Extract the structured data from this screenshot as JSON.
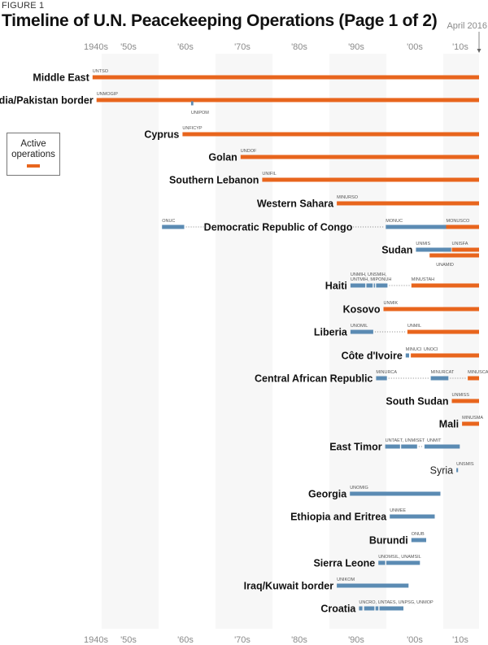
{
  "figure_label": "FIGURE 1",
  "title": "Timeline of U.N. Peacekeeping Operations (Page 1 of 2)",
  "legend": {
    "label": "Active operations",
    "color": "#e8651d"
  },
  "colors": {
    "active": "#e8651d",
    "inactive": "#5b8bb3",
    "band": "#f7f7f7"
  },
  "chart_data": {
    "type": "timeline",
    "title": "Timeline of U.N. Peacekeeping Operations (Page 1 of 2)",
    "x_range": [
      1940,
      2016
    ],
    "x_ticks": [
      "1940s",
      "'50s",
      "'60s",
      "'70s",
      "'80s",
      "'90s",
      "'00s",
      "'10s"
    ],
    "end_marker": "April 2016",
    "legend_position": "left",
    "rows": [
      {
        "name": "Middle East",
        "ops": [
          {
            "label": "UNTSO",
            "start": 1948.4,
            "end": 2016,
            "active": true
          }
        ]
      },
      {
        "name": "India/Pakistan border",
        "ops": [
          {
            "label": "UNMOGIP",
            "start": 1949.1,
            "end": 2016,
            "active": true
          },
          {
            "label": "UNIPOM",
            "start": 1965.7,
            "end": 1966.1,
            "active": false,
            "label_below": true,
            "sub": true
          }
        ]
      },
      {
        "name": "Cyprus",
        "ops": [
          {
            "label": "UNFICYP",
            "start": 1964.2,
            "end": 2016,
            "active": true
          }
        ]
      },
      {
        "name": "Golan",
        "ops": [
          {
            "label": "UNDOF",
            "start": 1974.4,
            "end": 2016,
            "active": true
          }
        ]
      },
      {
        "name": "Southern Lebanon",
        "ops": [
          {
            "label": "UNIFIL",
            "start": 1978.2,
            "end": 2016,
            "active": true
          }
        ]
      },
      {
        "name": "Western Sahara",
        "ops": [
          {
            "label": "MINURSO",
            "start": 1991.3,
            "end": 2016,
            "active": true
          }
        ]
      },
      {
        "name": "Democratic Republic of Congo",
        "label_inline": true,
        "ops": [
          {
            "label": "ONUC",
            "start": 1960.6,
            "end": 1964.5,
            "active": false
          },
          {
            "label": "MONUC",
            "start": 1999.9,
            "end": 2010.5,
            "active": false
          },
          {
            "label": "MONUSCO",
            "start": 2010.5,
            "end": 2016,
            "active": true
          }
        ],
        "dots": [
          [
            1964.5,
            1993.5
          ],
          [
            1994.2,
            1999.9
          ]
        ]
      },
      {
        "name": "Sudan",
        "ops": [
          {
            "label": "UNMIS",
            "start": 2005.2,
            "end": 2011.4,
            "active": false
          },
          {
            "label": "UNISFA",
            "start": 2011.5,
            "end": 2016,
            "active": true
          },
          {
            "label": "UNAMID",
            "start": 2007.6,
            "end": 2016,
            "active": true,
            "sub": true,
            "label_below": true
          }
        ]
      },
      {
        "name": "Haiti",
        "ops": [
          {
            "label": "UNMIH, UNSMIH, UNTMIH, MIPONUH",
            "start": 1993.7,
            "end": 1996.3,
            "active": false
          },
          {
            "label": "",
            "start": 1996.5,
            "end": 1997.6,
            "active": false
          },
          {
            "label": "",
            "start": 1997.8,
            "end": 1998.0,
            "active": false
          },
          {
            "label": "",
            "start": 1998.2,
            "end": 2000.2,
            "active": false
          },
          {
            "label": "MINUSTAH",
            "start": 2004.4,
            "end": 2016,
            "active": true
          }
        ],
        "dots": [
          [
            2000.2,
            2004.4
          ]
        ]
      },
      {
        "name": "Kosovo",
        "ops": [
          {
            "label": "UNMIK",
            "start": 1999.5,
            "end": 2016,
            "active": true
          }
        ]
      },
      {
        "name": "Liberia",
        "ops": [
          {
            "label": "UNOMIL",
            "start": 1993.7,
            "end": 1997.7,
            "active": false
          },
          {
            "label": "UNMIL",
            "start": 2003.7,
            "end": 2016,
            "active": true
          }
        ],
        "dots": [
          [
            1997.7,
            2003.7
          ]
        ]
      },
      {
        "name": "Côte d'Ivoire",
        "ops": [
          {
            "label": "MINUCI",
            "start": 2003.4,
            "end": 2004.0,
            "active": false
          },
          {
            "label": "UNOCI",
            "start": 2004.3,
            "end": 2016,
            "active": true
          }
        ]
      },
      {
        "name": "Central African Republic",
        "ops": [
          {
            "label": "MINURCA",
            "start": 1998.2,
            "end": 2000.1,
            "active": false
          },
          {
            "label": "MINURCAT",
            "start": 2007.8,
            "end": 2010.9,
            "active": false
          },
          {
            "label": "MINUSCA",
            "start": 2014.3,
            "end": 2016,
            "active": true
          }
        ],
        "dots": [
          [
            2000.1,
            2007.8
          ],
          [
            2010.9,
            2014.3
          ]
        ]
      },
      {
        "name": "South Sudan",
        "ops": [
          {
            "label": "UNMISS",
            "start": 2011.5,
            "end": 2016,
            "active": true
          }
        ]
      },
      {
        "name": "Mali",
        "ops": [
          {
            "label": "MINUSMA",
            "start": 2013.3,
            "end": 2016,
            "active": true
          }
        ]
      },
      {
        "name": "East Timor",
        "ops": [
          {
            "label": "UNTAET, UNMISET",
            "start": 1999.8,
            "end": 2002.4,
            "active": false
          },
          {
            "label": "",
            "start": 2002.6,
            "end": 2005.4,
            "active": false
          },
          {
            "label": "UNMIT",
            "start": 2006.7,
            "end": 2012.9,
            "active": false
          }
        ],
        "dots": [
          [
            2005.4,
            2006.7
          ]
        ]
      },
      {
        "name": "Syria",
        "light": true,
        "ops": [
          {
            "label": "UNSMIS",
            "start": 2012.3,
            "end": 2012.6,
            "active": false
          }
        ]
      },
      {
        "name": "Georgia",
        "ops": [
          {
            "label": "UNOMIG",
            "start": 1993.6,
            "end": 2009.5,
            "active": false
          }
        ]
      },
      {
        "name": "Ethiopia and Eritrea",
        "ops": [
          {
            "label": "UNMEE",
            "start": 2000.6,
            "end": 2008.5,
            "active": false
          }
        ]
      },
      {
        "name": "Burundi",
        "ops": [
          {
            "label": "ONUB",
            "start": 2004.4,
            "end": 2007.0,
            "active": false
          }
        ]
      },
      {
        "name": "Sierra Leone",
        "ops": [
          {
            "label": "UNOMSIL, UNAMSIL",
            "start": 1998.6,
            "end": 1999.8,
            "active": false
          },
          {
            "label": "",
            "start": 2000.0,
            "end": 2005.9,
            "active": false
          }
        ]
      },
      {
        "name": "Iraq/Kuwait border",
        "ops": [
          {
            "label": "UNIKOM",
            "start": 1991.3,
            "end": 2003.9,
            "active": false
          }
        ]
      },
      {
        "name": "Croatia",
        "ops": [
          {
            "label": "UNCRO, UNTAES, UNPSG, UNMOP",
            "start": 1995.2,
            "end": 1995.8,
            "active": false
          },
          {
            "label": "",
            "start": 1996.1,
            "end": 1997.9,
            "active": false
          },
          {
            "label": "",
            "start": 1998.1,
            "end": 1998.6,
            "active": false
          },
          {
            "label": "",
            "start": 1998.8,
            "end": 2003.0,
            "active": false
          }
        ]
      }
    ]
  }
}
